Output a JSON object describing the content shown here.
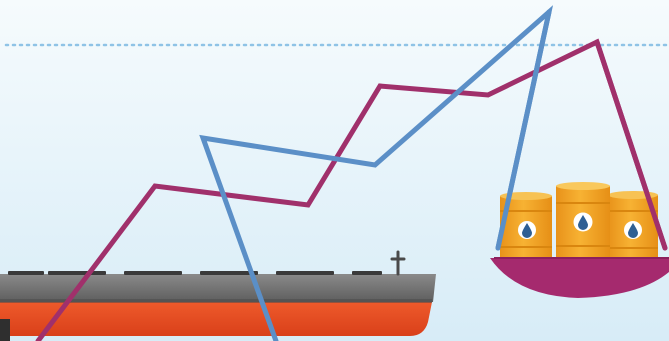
{
  "illustration": {
    "subject": "oil-tanker-and-oil-barrels-price-lines",
    "palette": {
      "sky_top": "#f4f9fc",
      "sky_bottom": "#dbeef8",
      "guide_line": "#8fc3e6",
      "hull_red": "#e6471f",
      "hull_gray": "#6e6e6e",
      "deck_hatch": "#3a3a3a",
      "line_magenta": "#a0306b",
      "line_blue": "#5b8fc7",
      "barrel_orange": "#f2a21b",
      "barrel_shadow": "#d9860f",
      "drop_blue": "#2f5f93",
      "pan_magenta": "#a52a6e"
    },
    "icons": [
      "ship-icon",
      "oil-barrel-icon",
      "oil-drop-icon"
    ]
  }
}
